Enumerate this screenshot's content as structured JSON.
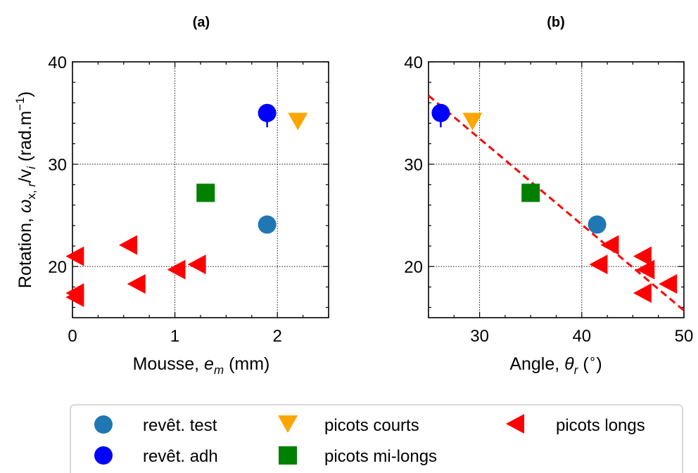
{
  "chart_data": [
    {
      "type": "scatter",
      "title": "(a)",
      "xlabel": "Mousse, e_m (mm)",
      "ylabel": "Rotation, ω_x,r/v_i (rad.m^-1)",
      "xlim": [
        0,
        2.5
      ],
      "ylim": [
        15,
        40
      ],
      "xticks": [
        0,
        1,
        2
      ],
      "yticks": [
        20,
        30,
        40
      ],
      "grid": true,
      "series": [
        {
          "name": "revêt. test",
          "marker": "circle",
          "color": "#1f77b4",
          "points": [
            {
              "x": 1.9,
              "y": 24.1
            }
          ]
        },
        {
          "name": "revêt. adh",
          "marker": "circle",
          "color": "#0000ff",
          "points": [
            {
              "x": 1.9,
              "y": 35.0,
              "err_low": 1.4
            }
          ]
        },
        {
          "name": "picots courts",
          "marker": "triangle-down",
          "color": "#ffa500",
          "points": [
            {
              "x": 2.2,
              "y": 34.2
            }
          ]
        },
        {
          "name": "picots mi-longs",
          "marker": "square",
          "color": "#008000",
          "points": [
            {
              "x": 1.3,
              "y": 27.2
            }
          ]
        },
        {
          "name": "picots longs",
          "marker": "triangle-left",
          "color": "#ff0000",
          "points": [
            {
              "x": 0.03,
              "y": 21.0
            },
            {
              "x": 0.03,
              "y": 17.4
            },
            {
              "x": 0.03,
              "y": 17.0
            },
            {
              "x": 0.55,
              "y": 22.1
            },
            {
              "x": 0.63,
              "y": 18.3
            },
            {
              "x": 1.02,
              "y": 19.7
            },
            {
              "x": 1.22,
              "y": 20.2
            }
          ]
        }
      ]
    },
    {
      "type": "scatter",
      "title": "(b)",
      "xlabel": "Angle, θ_r (°)",
      "xlim": [
        25,
        50
      ],
      "ylim": [
        15,
        40
      ],
      "xticks": [
        30,
        40,
        50
      ],
      "yticks": [
        20,
        30,
        40
      ],
      "grid": true,
      "fit_line": {
        "color": "#ff0000",
        "style": "dashed",
        "points": [
          {
            "x": 25,
            "y": 36.7
          },
          {
            "x": 50,
            "y": 15.7
          }
        ]
      },
      "series": [
        {
          "name": "revêt. test",
          "marker": "circle",
          "color": "#1f77b4",
          "points": [
            {
              "x": 41.5,
              "y": 24.1
            }
          ]
        },
        {
          "name": "revêt. adh",
          "marker": "circle",
          "color": "#0000ff",
          "points": [
            {
              "x": 26.2,
              "y": 35.0,
              "err_low": 1.4
            }
          ]
        },
        {
          "name": "picots courts",
          "marker": "triangle-down",
          "color": "#ffa500",
          "points": [
            {
              "x": 29.3,
              "y": 34.2
            }
          ]
        },
        {
          "name": "picots mi-longs",
          "marker": "square",
          "color": "#008000",
          "points": [
            {
              "x": 35.0,
              "y": 27.2
            }
          ]
        },
        {
          "name": "picots longs",
          "marker": "triangle-left",
          "color": "#ff0000",
          "points": [
            {
              "x": 41.7,
              "y": 20.2
            },
            {
              "x": 42.8,
              "y": 22.1
            },
            {
              "x": 46.0,
              "y": 21.0
            },
            {
              "x": 46.3,
              "y": 19.7
            },
            {
              "x": 46.0,
              "y": 17.4
            },
            {
              "x": 48.5,
              "y": 18.3
            }
          ]
        }
      ]
    }
  ],
  "legend": {
    "placement": "bottom",
    "entries": [
      {
        "label": "revêt. test",
        "marker": "circle",
        "color": "#1f77b4"
      },
      {
        "label": "revêt. adh",
        "marker": "circle",
        "color": "#0000ff"
      },
      {
        "label": "picots courts",
        "marker": "triangle-down",
        "color": "#ffa500"
      },
      {
        "label": "picots mi-longs",
        "marker": "square",
        "color": "#008000"
      },
      {
        "label": "picots longs",
        "marker": "triangle-left",
        "color": "#ff0000"
      }
    ]
  }
}
